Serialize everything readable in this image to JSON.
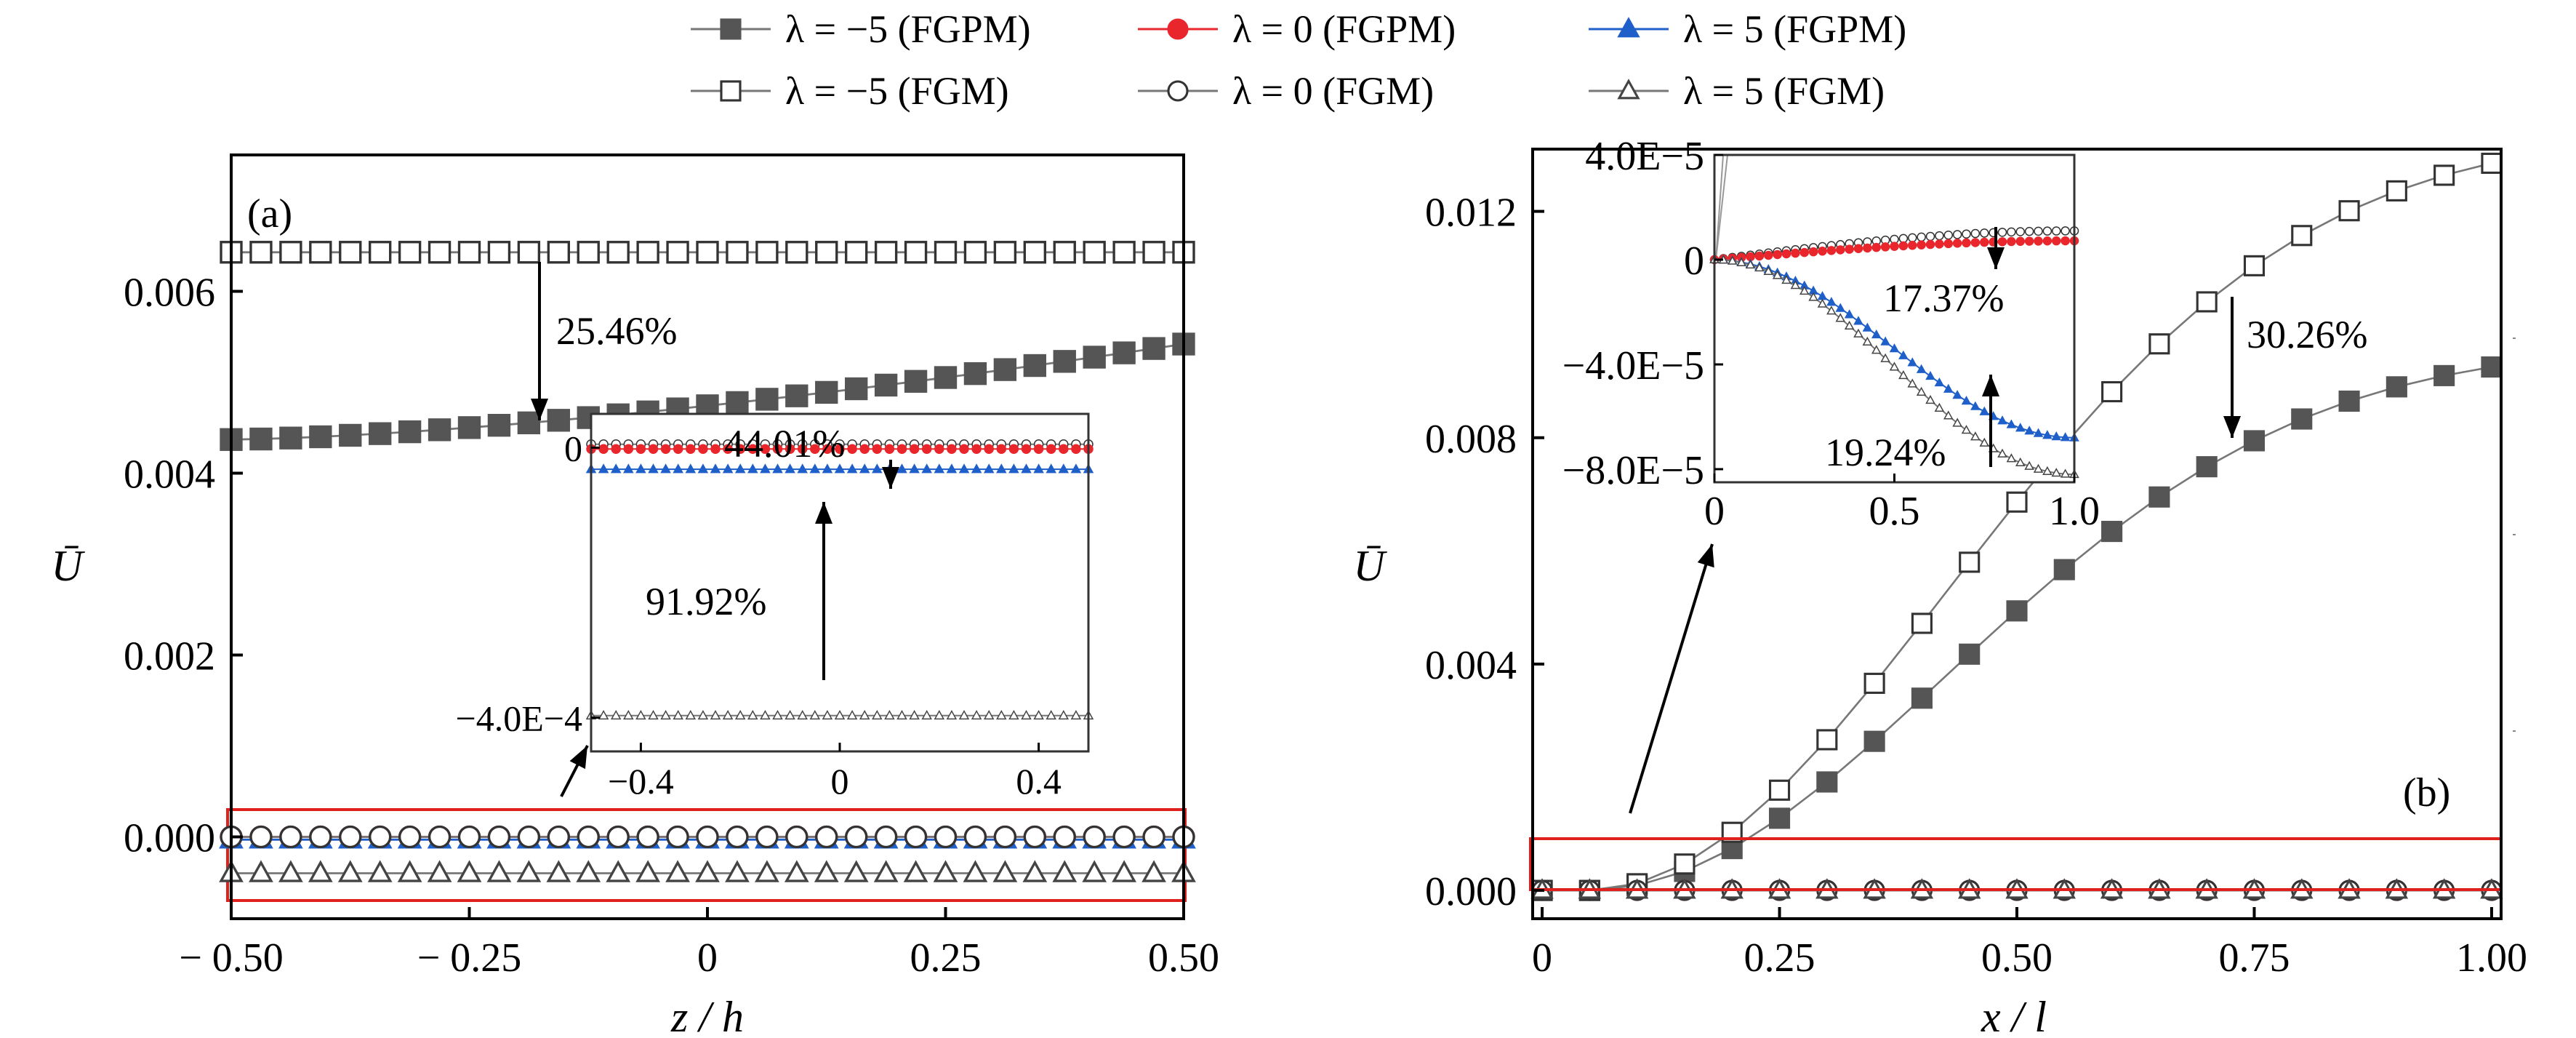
{
  "legend": {
    "entries": [
      {
        "label": "λ = −5 (FGPM)",
        "marker": "square-filled",
        "color": "#555555"
      },
      {
        "label": "λ = 0 (FGPM)",
        "marker": "circle-filled",
        "color": "#e8262c"
      },
      {
        "label": "λ = 5 (FGPM)",
        "marker": "triangle-filled",
        "color": "#1f5fc9"
      },
      {
        "label": "λ = −5 (FGM)",
        "marker": "square-open",
        "color": "#555555"
      },
      {
        "label": "λ = 0 (FGM)",
        "marker": "circle-open",
        "color": "#555555"
      },
      {
        "label": "λ = 5 (FGM)",
        "marker": "triangle-open",
        "color": "#555555"
      }
    ]
  },
  "colors": {
    "highlight_box": "#e0201c",
    "fgpm_dark": "#555555",
    "fgpm_red": "#e8262c",
    "fgpm_blue": "#1f5fc9",
    "open_gray": "#777777"
  },
  "chart_data": [
    {
      "id": "a",
      "type": "line",
      "panel_label": "(a)",
      "xlabel": "z / h",
      "ylabel": "Ū",
      "xlim": [
        -0.5,
        0.5
      ],
      "ylim": [
        -0.0009,
        0.0075
      ],
      "xticks": [
        -0.5,
        -0.25,
        0,
        0.25,
        0.5
      ],
      "xtick_labels": [
        "− 0.50",
        "− 0.25",
        "0",
        "0.25",
        "0.50"
      ],
      "yticks": [
        0.0,
        0.002,
        0.004,
        0.006
      ],
      "ytick_labels": [
        "0.000",
        "0.002",
        "0.004",
        "0.006"
      ],
      "series": [
        {
          "name": "λ = −5 (FGPM)",
          "marker": "square-filled",
          "y_start": 0.00437,
          "y_end": 0.00542,
          "curve": 1.5
        },
        {
          "name": "λ = 0 (FGPM)",
          "marker": "circle-filled",
          "y_start": 0.0,
          "y_end": 0.0
        },
        {
          "name": "λ = 5 (FGPM)",
          "marker": "triangle-filled",
          "y_start": -3e-05,
          "y_end": -3e-05
        },
        {
          "name": "λ = −5 (FGM)",
          "marker": "square-open",
          "y_start": 0.00643,
          "y_end": 0.00643
        },
        {
          "name": "λ = 0 (FGM)",
          "marker": "circle-open",
          "y_start": 0.0,
          "y_end": 0.0
        },
        {
          "name": "λ = 5 (FGM)",
          "marker": "triangle-open",
          "y_start": -0.0004,
          "y_end": -0.0004
        }
      ],
      "annotation": "25.46%",
      "inset": {
        "xlim": [
          -0.5,
          0.5
        ],
        "ylim": [
          -0.00045,
          5e-05
        ],
        "xticks": [
          -0.4,
          0,
          0.4
        ],
        "xtick_labels": [
          "−0.4",
          "0",
          "0.4"
        ],
        "yticks": [
          0,
          -0.0004
        ],
        "ytick_labels": [
          "0",
          "−4.0E−4"
        ],
        "series": [
          {
            "name": "λ = 0 (FGM)",
            "marker": "circle-open",
            "y_start": 5e-06,
            "y_end": 5e-06
          },
          {
            "name": "λ = 0 (FGPM)",
            "marker": "circle-filled",
            "y_start": -2e-06,
            "y_end": -2e-06
          },
          {
            "name": "λ = 5 (FGPM)",
            "marker": "triangle-filled",
            "y_start": -3.2e-05,
            "y_end": -3.2e-05
          },
          {
            "name": "λ = 5 (FGM)",
            "marker": "triangle-open",
            "y_start": -0.000397,
            "y_end": -0.000397
          }
        ],
        "annotations": [
          "44.01%",
          "91.92%"
        ]
      }
    },
    {
      "id": "b",
      "type": "line",
      "panel_label": "(b)",
      "xlabel": "x / l",
      "ylabel": "Ū",
      "xlim": [
        -0.01,
        1.01
      ],
      "ylim": [
        -0.0005,
        0.0131
      ],
      "xticks": [
        0,
        0.25,
        0.5,
        0.75,
        1.0
      ],
      "xtick_labels": [
        "0",
        "0.25",
        "0.50",
        "0.75",
        "1.00"
      ],
      "yticks": [
        0.0,
        0.004,
        0.008,
        0.012
      ],
      "ytick_labels": [
        "0.000",
        "0.004",
        "0.008",
        "0.012"
      ],
      "series": [
        {
          "name": "λ = −5 (FGPM)",
          "marker": "square-filled",
          "y_end": 0.00925
        },
        {
          "name": "λ = 0 (FGPM)",
          "marker": "circle-filled"
        },
        {
          "name": "λ = 5 (FGPM)",
          "marker": "triangle-filled"
        },
        {
          "name": "λ = −5 (FGM)",
          "marker": "square-open",
          "y_end": 0.01285
        },
        {
          "name": "λ = 0 (FGM)",
          "marker": "circle-open"
        },
        {
          "name": "λ = 5 (FGM)",
          "marker": "triangle-open"
        }
      ],
      "annotation": "30.26%",
      "inset": {
        "xlim": [
          0,
          1.0
        ],
        "ylim": [
          -8.5e-05,
          4e-05
        ],
        "xticks": [
          0,
          0.5,
          1.0
        ],
        "xtick_labels": [
          "0",
          "0.5",
          "1.0"
        ],
        "yticks": [
          4e-05,
          0,
          -4e-05,
          -8e-05
        ],
        "ytick_labels": [
          "4.0E−5",
          "0",
          "−4.0E−5",
          "−8.0E−5"
        ],
        "series": [
          {
            "name": "λ = 0 (FGM)",
            "marker": "circle-open",
            "y_end": 1.1e-05
          },
          {
            "name": "λ = 0 (FGPM)",
            "marker": "circle-filled",
            "y_end": 7.2e-06
          },
          {
            "name": "λ = 5 (FGPM)",
            "marker": "triangle-filled",
            "y_end": -6.8e-05
          },
          {
            "name": "λ = 5 (FGM)",
            "marker": "triangle-open",
            "y_end": -8.2e-05
          }
        ],
        "annotations": [
          "17.37%",
          "19.24%"
        ]
      }
    }
  ]
}
